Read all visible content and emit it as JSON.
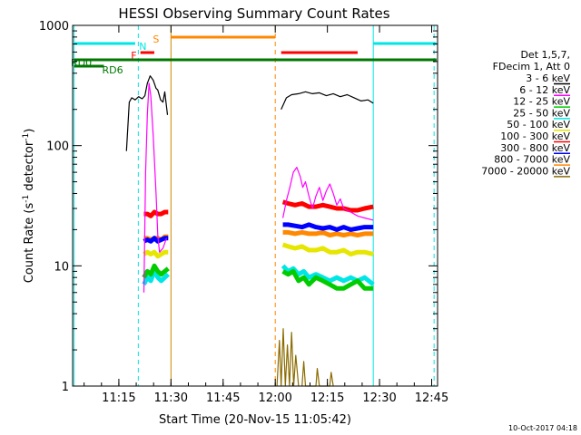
{
  "chart_data": {
    "type": "line",
    "title": "HESSI Observing Summary Count Rates",
    "xlabel": "Start Time (20-Nov-15 11:05:42)",
    "ylabel_main": "Count Rate (s",
    "ylabel_sup1": "-1",
    "ylabel_mid": " detector",
    "ylabel_sup2": "-1",
    "ylabel_end": ")",
    "y_scale": "log",
    "ylim": [
      1,
      1000
    ],
    "xlim_minutes": [
      0,
      105
    ],
    "x_ticks": [
      {
        "t": 13.3,
        "label": "11:15"
      },
      {
        "t": 28.3,
        "label": "11:30"
      },
      {
        "t": 43.3,
        "label": "11:45"
      },
      {
        "t": 58.3,
        "label": "12:00"
      },
      {
        "t": 73.3,
        "label": "12:15"
      },
      {
        "t": 88.3,
        "label": "12:30"
      },
      {
        "t": 103.3,
        "label": "12:45"
      }
    ],
    "y_ticks": [
      {
        "v": 1,
        "label": "1"
      },
      {
        "v": 10,
        "label": "10"
      },
      {
        "v": 100,
        "label": "100"
      },
      {
        "v": 1000,
        "label": "1000"
      }
    ],
    "legend_header": [
      "Det 1,5,7,",
      "FDecim 1, Att 0"
    ],
    "series": [
      {
        "name": "3 - 6 keV",
        "color": "#000000",
        "segments": [
          {
            "t": [
              15.5,
              16.3,
              17.0,
              18.0,
              19.0,
              20.0,
              20.8,
              21.5,
              22.3,
              23.2,
              24.0,
              24.5,
              25.3,
              26.0,
              26.5,
              27.3
            ],
            "v": [
              90,
              230,
              250,
              240,
              255,
              245,
              260,
              330,
              380,
              350,
              300,
              290,
              240,
              230,
              280,
              180
            ]
          },
          {
            "t": [
              60.0,
              61.5,
              63.0,
              65.0,
              67.0,
              69.0,
              71.0,
              73.0,
              75.0,
              77.0,
              79.0,
              81.0,
              83.0,
              85.0,
              86.5
            ],
            "v": [
              200,
              250,
              265,
              270,
              280,
              270,
              275,
              260,
              270,
              255,
              265,
              250,
              235,
              240,
              225
            ]
          }
        ]
      },
      {
        "name": "6 - 12 keV",
        "color": "#ff00ff",
        "segments": [
          {
            "t": [
              20.5,
              21.0,
              21.5,
              22.0,
              22.5,
              23.2,
              24.0,
              24.5,
              25.0,
              26.0,
              27.0
            ],
            "v": [
              6,
              60,
              180,
              330,
              260,
              120,
              40,
              18,
              13,
              14,
              17
            ]
          },
          {
            "t": [
              60.5,
              61.5,
              62.5,
              63.5,
              64.5,
              65.5,
              66.2,
              67.0,
              68.0,
              69.0,
              70.0,
              71.0,
              72.0,
              73.0,
              74.0,
              75.0,
              76.0,
              77.0,
              78.0,
              80.0,
              82.0,
              84.0,
              86.5
            ],
            "v": [
              25,
              35,
              45,
              60,
              66,
              55,
              45,
              50,
              38,
              30,
              38,
              45,
              35,
              42,
              48,
              40,
              32,
              36,
              30,
              28,
              26,
              25,
              24
            ]
          }
        ]
      },
      {
        "name": "12 - 25 keV",
        "color": "#00cc00",
        "segments": [
          {
            "t": [
              20.5,
              21.5,
              22.5,
              23.5,
              24.5,
              25.5,
              26.5,
              27.5
            ],
            "v": [
              8,
              9,
              8.5,
              10,
              9,
              8.5,
              9,
              9.5
            ]
          },
          {
            "t": [
              60.5,
              62.0,
              63.5,
              65.0,
              66.5,
              68.0,
              70.0,
              72.0,
              74.0,
              76.0,
              78.0,
              80.0,
              82.0,
              84.0,
              86.5
            ],
            "v": [
              9,
              8.5,
              9,
              7.5,
              8,
              7,
              8,
              7.5,
              7,
              6.5,
              6.5,
              7,
              7.5,
              6.5,
              6.5
            ]
          }
        ]
      },
      {
        "name": "25 - 50 keV",
        "color": "#00e6e6",
        "segments": [
          {
            "t": [
              20.5,
              21.5,
              22.5,
              23.5,
              24.5,
              25.5,
              26.5,
              27.5
            ],
            "v": [
              7,
              8,
              7.5,
              9,
              8,
              7.5,
              8,
              8.5
            ]
          },
          {
            "t": [
              60.5,
              62.0,
              63.5,
              65.0,
              66.5,
              68.0,
              70.0,
              72.0,
              74.0,
              76.0,
              78.0,
              80.0,
              82.0,
              84.0,
              86.5
            ],
            "v": [
              10,
              9,
              9.5,
              8.5,
              9,
              8,
              8.5,
              8,
              7.5,
              8,
              7.5,
              8,
              7.5,
              8,
              7
            ]
          }
        ]
      },
      {
        "name": "50 - 100 keV",
        "color": "#e6e600",
        "segments": [
          {
            "t": [
              20.5,
              21.5,
              22.5,
              23.5,
              24.5,
              25.5,
              26.5,
              27.5
            ],
            "v": [
              12.5,
              13,
              12.5,
              13,
              12,
              12.5,
              13,
              13
            ]
          },
          {
            "t": [
              60.5,
              62.0,
              64.0,
              66.0,
              68.0,
              70.0,
              72.0,
              74.0,
              76.0,
              78.0,
              80.0,
              82.0,
              84.0,
              86.5
            ],
            "v": [
              15,
              14.5,
              14,
              14.5,
              13.5,
              13.5,
              14,
              13,
              13,
              13.5,
              12.5,
              13,
              13,
              12.5
            ]
          }
        ]
      },
      {
        "name": "100 - 300 keV",
        "color": "#ff0000",
        "segments": [
          {
            "t": [
              20.5,
              21.5,
              22.5,
              23.5,
              24.5,
              25.5,
              26.5,
              27.5
            ],
            "v": [
              27,
              27,
              26,
              28,
              27,
              27,
              28,
              28
            ]
          },
          {
            "t": [
              60.5,
              62.0,
              64.0,
              66.0,
              68.0,
              70.0,
              72.0,
              74.0,
              76.0,
              78.0,
              80.0,
              82.0,
              84.0,
              86.5
            ],
            "v": [
              34,
              33,
              32,
              33,
              31,
              31,
              32,
              31,
              30,
              30,
              29,
              29,
              30,
              31
            ]
          }
        ]
      },
      {
        "name": "300 - 800 keV",
        "color": "#0000ff",
        "segments": [
          {
            "t": [
              20.5,
              21.5,
              22.5,
              23.5,
              24.5,
              25.5,
              26.5,
              27.5
            ],
            "v": [
              16,
              16.5,
              16,
              17,
              16,
              16.5,
              17,
              17
            ]
          },
          {
            "t": [
              60.5,
              62.0,
              64.0,
              66.0,
              68.0,
              70.0,
              72.0,
              74.0,
              76.0,
              78.0,
              80.0,
              82.0,
              84.0,
              86.5
            ],
            "v": [
              22,
              22,
              21.5,
              21,
              22,
              21,
              20.5,
              21,
              20,
              21,
              20,
              20.5,
              21,
              21
            ]
          }
        ]
      },
      {
        "name": "800 - 7000 keV",
        "color": "#ff8800",
        "segments": [
          {
            "t": [
              20.5,
              21.5,
              22.5,
              23.5,
              24.5,
              25.5,
              26.5,
              27.5
            ],
            "v": [
              17,
              17,
              16.5,
              17,
              17,
              16.5,
              17.5,
              17.5
            ]
          },
          {
            "t": [
              60.5,
              62.0,
              64.0,
              66.0,
              68.0,
              70.0,
              72.0,
              74.0,
              76.0,
              78.0,
              80.0,
              82.0,
              84.0,
              86.5
            ],
            "v": [
              19,
              19,
              18.5,
              19,
              18.5,
              18.5,
              19,
              18,
              18.5,
              18,
              18.5,
              18,
              18.5,
              18.5
            ]
          }
        ]
      },
      {
        "name": "7000 - 20000 keV",
        "color": "#8b6b00",
        "segments": [
          {
            "t": [
              58.8,
              59.5,
              60.0,
              60.6,
              61.2,
              61.8,
              62.4,
              63.0,
              63.6,
              64.2,
              65.0
            ],
            "v": [
              1,
              2.4,
              1,
              3.0,
              1,
              2.2,
              1,
              2.8,
              1,
              1.8,
              1
            ]
          },
          {
            "t": [
              66.0,
              66.5,
              67.0,
              70.0,
              70.4,
              71.0,
              74.0,
              74.4,
              75.0
            ],
            "v": [
              1,
              1.6,
              1,
              1,
              1.4,
              1,
              1,
              1.3,
              1
            ]
          }
        ]
      }
    ],
    "v_lines": [
      {
        "t": 0.4,
        "color": "#00e6e6",
        "dash": false
      },
      {
        "t": 18.9,
        "color": "#00e6e6",
        "dash": true
      },
      {
        "t": 28.3,
        "color": "#cc8800",
        "dash": false
      },
      {
        "t": 58.3,
        "color": "#ff8800",
        "dash": true
      },
      {
        "t": 86.5,
        "color": "#00e6e6",
        "dash": false
      },
      {
        "t": 104.0,
        "color": "#00e6e6",
        "dash": true
      }
    ],
    "flag_bars": [
      {
        "label": "",
        "color": "#00e6e6",
        "t0": 0.4,
        "t1": 18.0,
        "y": 48
      },
      {
        "label": "",
        "color": "#00e6e6",
        "t0": 86.5,
        "t1": 104.7,
        "y": 48
      },
      {
        "label": "",
        "color": "#ff8800",
        "t0": 28.3,
        "t1": 58.3,
        "y": 41
      },
      {
        "label": "",
        "color": "#ff0000",
        "t0": 60.0,
        "t1": 82.0,
        "y": 58
      },
      {
        "label": "",
        "color": "#ff0000",
        "t0": 19.5,
        "t1": 23.5,
        "y": 58
      },
      {
        "label": "",
        "color": "#007700",
        "t0": 0.4,
        "t1": 104.7,
        "y": 66
      },
      {
        "label": "",
        "color": "#007700",
        "t0": 0.4,
        "t1": 9.0,
        "y": 73
      }
    ],
    "flag_labels": [
      {
        "text": "N",
        "color": "#00e6e6",
        "t": 20.2,
        "y": 51
      },
      {
        "text": "S",
        "color": "#ff8800",
        "t": 24.0,
        "y": 43
      },
      {
        "text": "F",
        "color": "#ff0000",
        "t": 17.6,
        "y": 61
      },
      {
        "text": "RD0",
        "color": "#007700",
        "t": 2.5,
        "y": 69
      },
      {
        "text": "RD6",
        "color": "#007700",
        "t": 11.5,
        "y": 77
      }
    ],
    "annotation": "10-Oct-2017 04:18"
  }
}
